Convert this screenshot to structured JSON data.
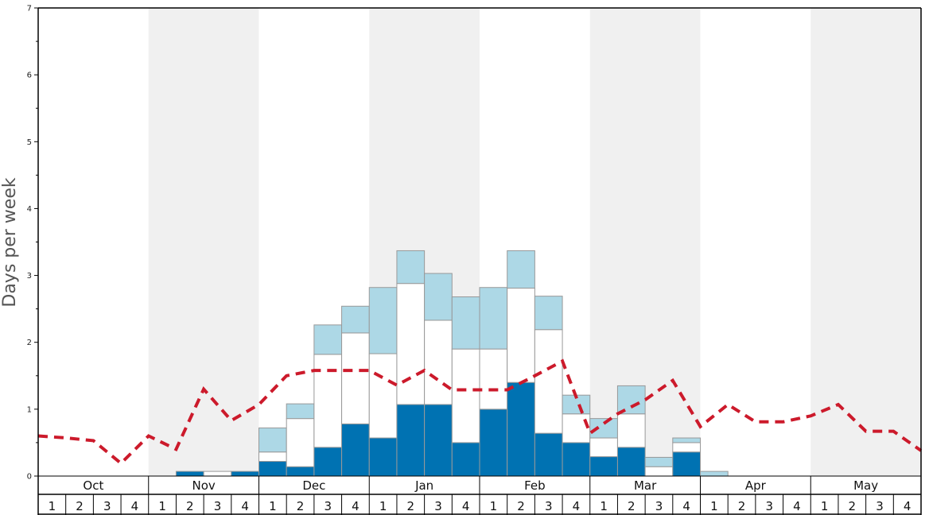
{
  "chart_data": {
    "type": "bar",
    "ylabel": "Days per week",
    "ylim": [
      0,
      7
    ],
    "y_ticks": [
      "0",
      "1",
      "2",
      "3",
      "4",
      "5",
      "6",
      "7"
    ],
    "months": [
      "Oct",
      "Nov",
      "Dec",
      "Jan",
      "Feb",
      "Mar",
      "Apr",
      "May"
    ],
    "week_labels": [
      "1",
      "2",
      "3",
      "4"
    ],
    "month_shading": [
      false,
      true,
      false,
      true,
      false,
      true,
      false,
      true
    ],
    "bar_stack": {
      "dark": [
        0,
        0,
        0,
        0,
        0,
        0.07,
        0,
        0.07,
        0.22,
        0.14,
        0.43,
        0.78,
        0.57,
        1.07,
        1.07,
        0.5,
        1.0,
        1.4,
        0.64,
        0.5,
        0.29,
        0.43,
        0,
        0.36,
        0,
        0,
        0,
        0,
        0,
        0,
        0,
        0
      ],
      "white": [
        0,
        0,
        0,
        0,
        0,
        0,
        0.07,
        0,
        0.14,
        0.72,
        1.39,
        1.36,
        1.26,
        1.81,
        1.26,
        1.4,
        0.9,
        1.41,
        1.55,
        0.43,
        0.28,
        0.5,
        0.14,
        0.14,
        0,
        0,
        0,
        0,
        0,
        0,
        0,
        0
      ],
      "light": [
        0,
        0,
        0,
        0,
        0,
        0,
        0,
        0,
        0.36,
        0.22,
        0.44,
        0.4,
        0.99,
        0.49,
        0.7,
        0.78,
        0.92,
        0.56,
        0.5,
        0.28,
        0.29,
        0.42,
        0.14,
        0.07,
        0.07,
        0,
        0,
        0,
        0,
        0,
        0,
        0
      ]
    },
    "average_line": [
      0.6,
      0.57,
      0.53,
      0.19,
      0.6,
      0.4,
      1.3,
      0.83,
      1.07,
      1.5,
      1.58,
      1.58,
      1.58,
      1.36,
      1.58,
      1.29,
      1.29,
      1.29,
      1.5,
      1.72,
      0.64,
      0.93,
      1.14,
      1.43,
      0.74,
      1.07,
      0.81,
      0.81,
      0.9,
      1.07,
      0.67,
      0.67,
      0.38
    ],
    "grid": false,
    "legend": "none"
  },
  "colors": {
    "dark": "#0072b2",
    "white": "#ffffff",
    "light": "#add8e6",
    "line": "#cc1a2b",
    "shade": "#f0f0f0",
    "border": "#999999",
    "axis": "#000000"
  }
}
